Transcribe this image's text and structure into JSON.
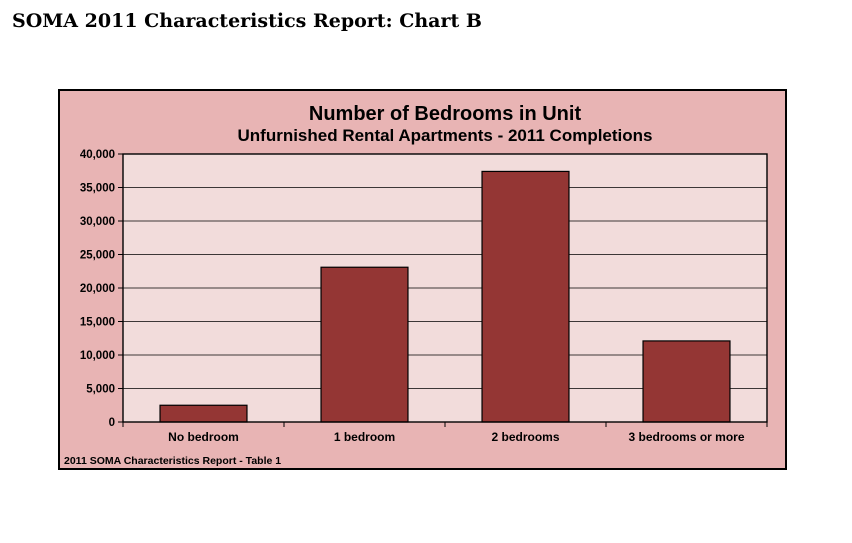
{
  "page": {
    "title": "SOMA 2011 Characteristics Report: Chart B"
  },
  "chart_data": {
    "type": "bar",
    "title": "Number of Bedrooms in Unit",
    "subtitle": "Unfurnished Rental Apartments - 2011 Completions",
    "xlabel": "",
    "ylabel": "",
    "categories": [
      "No bedroom",
      "1 bedroom",
      "2 bedrooms",
      "3 bedrooms or more"
    ],
    "values": [
      2500,
      23100,
      37400,
      12100
    ],
    "ylim": [
      0,
      40000
    ],
    "yticks": [
      0,
      5000,
      10000,
      15000,
      20000,
      25000,
      30000,
      35000,
      40000
    ],
    "ytick_labels": [
      "0",
      "5,000",
      "10,000",
      "15,000",
      "20,000",
      "25,000",
      "30,000",
      "35,000",
      "40,000"
    ],
    "grid": true,
    "legend": "none",
    "source_note": "2011 SOMA Characteristics Report - Table 1",
    "colors": {
      "bar": "#943634",
      "plot_background": "#f2dcdb",
      "frame_background": "#e8b4b4"
    }
  }
}
